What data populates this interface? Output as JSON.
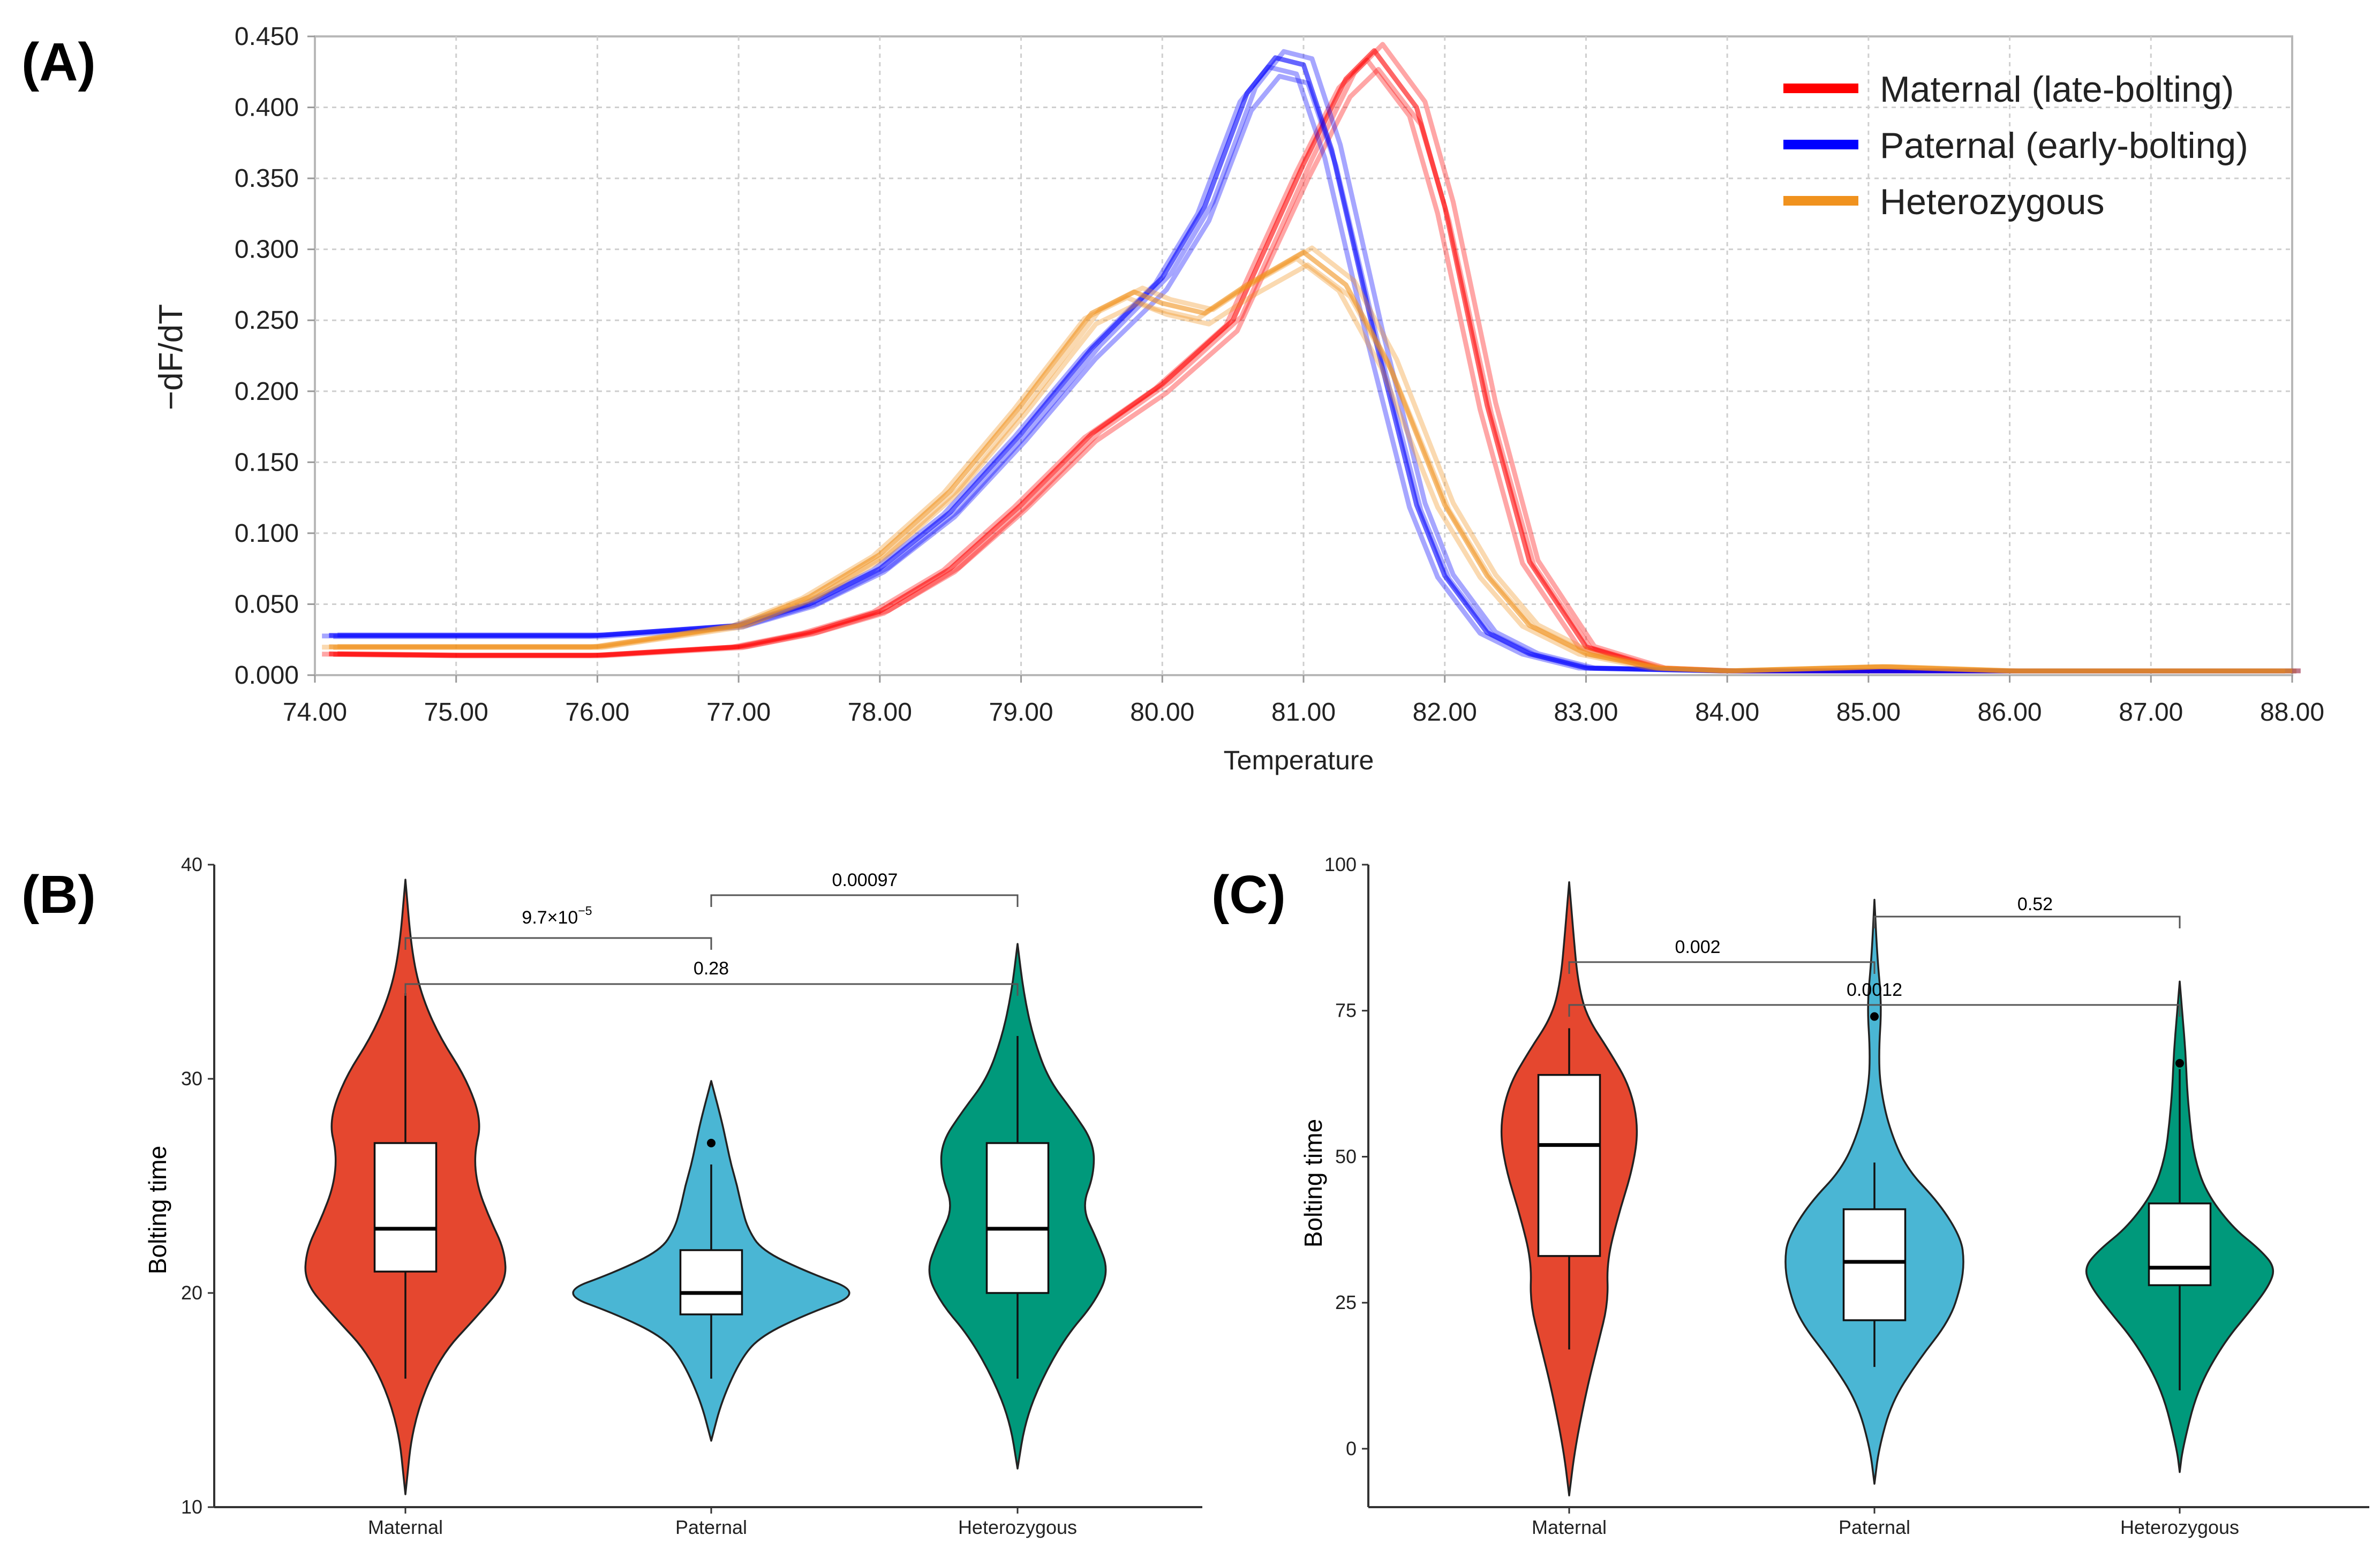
{
  "chart_data": [
    {
      "panel_label": "(A)",
      "type": "line",
      "xlabel": "Temperature",
      "ylabel": "−dF/dT",
      "xlim": [
        74.0,
        88.0
      ],
      "ylim": [
        0.0,
        0.45
      ],
      "grid": true,
      "legend_position": "top-right",
      "x_ticks": [
        "74.00",
        "75.00",
        "76.00",
        "77.00",
        "78.00",
        "79.00",
        "80.00",
        "81.00",
        "82.00",
        "83.00",
        "84.00",
        "85.00",
        "86.00",
        "87.00",
        "88.00"
      ],
      "y_ticks": [
        "0.000",
        "0.050",
        "0.100",
        "0.150",
        "0.200",
        "0.250",
        "0.300",
        "0.350",
        "0.400",
        "0.450"
      ],
      "series": [
        {
          "name": "Maternal (late-bolting)",
          "color": "#ff0000",
          "x": [
            74.1,
            75.0,
            76.0,
            77.0,
            77.5,
            78.0,
            78.5,
            79.0,
            79.5,
            80.0,
            80.5,
            81.0,
            81.3,
            81.5,
            81.8,
            82.0,
            82.3,
            82.6,
            83.0,
            83.5,
            84.0,
            86.0,
            88.0
          ],
          "y": [
            0.015,
            0.014,
            0.014,
            0.02,
            0.03,
            0.045,
            0.075,
            0.12,
            0.17,
            0.205,
            0.25,
            0.36,
            0.42,
            0.44,
            0.4,
            0.33,
            0.19,
            0.08,
            0.02,
            0.005,
            0.003,
            0.003,
            0.003
          ]
        },
        {
          "name": "Paternal (early-bolting)",
          "color": "#0000ff",
          "x": [
            74.1,
            75.0,
            76.0,
            77.0,
            77.5,
            78.0,
            78.5,
            79.0,
            79.5,
            80.0,
            80.3,
            80.6,
            80.8,
            81.0,
            81.2,
            81.5,
            81.8,
            82.0,
            82.3,
            82.6,
            83.0,
            84.0,
            86.0,
            88.0
          ],
          "y": [
            0.028,
            0.028,
            0.028,
            0.035,
            0.05,
            0.075,
            0.115,
            0.17,
            0.23,
            0.28,
            0.33,
            0.41,
            0.435,
            0.43,
            0.37,
            0.24,
            0.12,
            0.07,
            0.03,
            0.015,
            0.005,
            0.003,
            0.003,
            0.003
          ]
        },
        {
          "name": "Heterozygous",
          "color": "#f0921e",
          "x": [
            74.1,
            75.0,
            76.0,
            77.0,
            77.5,
            78.0,
            78.5,
            79.0,
            79.5,
            79.8,
            80.0,
            80.3,
            80.6,
            81.0,
            81.3,
            81.6,
            82.0,
            82.3,
            82.6,
            83.0,
            83.5,
            84.0,
            85.1,
            86.0,
            88.0
          ],
          "y": [
            0.02,
            0.02,
            0.02,
            0.035,
            0.055,
            0.085,
            0.13,
            0.19,
            0.255,
            0.27,
            0.262,
            0.255,
            0.275,
            0.298,
            0.275,
            0.22,
            0.12,
            0.07,
            0.035,
            0.015,
            0.005,
            0.003,
            0.006,
            0.003,
            0.003
          ]
        }
      ]
    },
    {
      "panel_label": "(B)",
      "type": "violin",
      "xlabel": "",
      "ylabel": "Bolting time",
      "ylim": [
        10,
        40
      ],
      "y_ticks": [
        10,
        20,
        30,
        40
      ],
      "categories": [
        "Maternal",
        "Paternal",
        "Heterozygous"
      ],
      "colors": [
        "#e5472f",
        "#4ab6d4",
        "#00997b"
      ],
      "box": [
        {
          "whisker_low": 16,
          "q1": 21,
          "median": 23,
          "q3": 27,
          "whisker_high": 34,
          "outliers": []
        },
        {
          "whisker_low": 16,
          "q1": 19,
          "median": 20,
          "q3": 22,
          "whisker_high": 26,
          "outliers": [
            27
          ]
        },
        {
          "whisker_low": 16,
          "q1": 20,
          "median": 23,
          "q3": 27,
          "whisker_high": 32,
          "outliers": []
        }
      ],
      "violin": [
        {
          "y": [
            10.6,
            14,
            17,
            19,
            20.5,
            22,
            23.5,
            25,
            26.5,
            28,
            30,
            32,
            34,
            36,
            39.3
          ],
          "w": [
            0,
            0.05,
            0.22,
            0.48,
            0.66,
            0.65,
            0.55,
            0.47,
            0.45,
            0.5,
            0.4,
            0.22,
            0.1,
            0.04,
            0
          ]
        },
        {
          "y": [
            13.1,
            15,
            17,
            18,
            19,
            20,
            21,
            22,
            23,
            24,
            25,
            26,
            27,
            28,
            29.9
          ],
          "w": [
            0,
            0.07,
            0.2,
            0.33,
            0.62,
            1.0,
            0.62,
            0.33,
            0.24,
            0.2,
            0.17,
            0.13,
            0.1,
            0.07,
            0
          ]
        },
        {
          "y": [
            11.8,
            14,
            16,
            18,
            19.5,
            21,
            22.5,
            24,
            25.5,
            27,
            28.5,
            30,
            32,
            34,
            36.3
          ],
          "w": [
            0,
            0.05,
            0.16,
            0.32,
            0.5,
            0.6,
            0.52,
            0.42,
            0.5,
            0.5,
            0.36,
            0.2,
            0.1,
            0.04,
            0
          ]
        }
      ],
      "comparisons": [
        {
          "groups": [
            "Maternal",
            "Paternal"
          ],
          "p_base": "9.7×10",
          "p_exp": "−5"
        },
        {
          "groups": [
            "Paternal",
            "Heterozygous"
          ],
          "p_label": "0.00097"
        },
        {
          "groups": [
            "Maternal",
            "Heterozygous"
          ],
          "p_label": "0.28"
        }
      ]
    },
    {
      "panel_label": "(C)",
      "type": "violin",
      "xlabel": "",
      "ylabel": "Bolting time",
      "ylim": [
        -10,
        100
      ],
      "y_ticks": [
        0,
        25,
        50,
        75,
        100
      ],
      "categories": [
        "Maternal",
        "Paternal",
        "Heterozygous"
      ],
      "colors": [
        "#e5472f",
        "#4ab6d4",
        "#00997b"
      ],
      "box": [
        {
          "whisker_low": 17,
          "q1": 33,
          "median": 52,
          "q3": 64,
          "whisker_high": 72,
          "outliers": []
        },
        {
          "whisker_low": 14,
          "q1": 22,
          "median": 32,
          "q3": 41,
          "whisker_high": 49,
          "outliers": [
            74
          ]
        },
        {
          "whisker_low": 10,
          "q1": 28,
          "median": 31,
          "q3": 42,
          "whisker_high": 65,
          "outliers": [
            66
          ]
        }
      ],
      "violin": [
        {
          "y": [
            -8,
            0,
            10,
            18,
            25,
            32,
            40,
            48,
            55,
            62,
            68,
            74,
            80,
            88,
            97
          ],
          "w": [
            0,
            0.04,
            0.12,
            0.2,
            0.27,
            0.26,
            0.34,
            0.44,
            0.48,
            0.42,
            0.28,
            0.12,
            0.06,
            0.03,
            0
          ]
        },
        {
          "y": [
            -6,
            0,
            8,
            15,
            22,
            28,
            32,
            36,
            42,
            48,
            55,
            62,
            68,
            76,
            84,
            94
          ],
          "w": [
            0,
            0.03,
            0.12,
            0.3,
            0.52,
            0.6,
            0.62,
            0.6,
            0.45,
            0.22,
            0.1,
            0.04,
            0.03,
            0.05,
            0.02,
            0
          ]
        },
        {
          "y": [
            -4,
            0,
            10,
            18,
            24,
            28,
            31,
            34,
            38,
            44,
            50,
            56,
            62,
            68,
            74,
            80
          ],
          "w": [
            0,
            0.02,
            0.12,
            0.3,
            0.5,
            0.62,
            0.66,
            0.56,
            0.36,
            0.18,
            0.1,
            0.07,
            0.05,
            0.04,
            0.02,
            0
          ]
        }
      ],
      "comparisons": [
        {
          "groups": [
            "Maternal",
            "Paternal"
          ],
          "p_label": "0.002"
        },
        {
          "groups": [
            "Paternal",
            "Heterozygous"
          ],
          "p_label": "0.52"
        },
        {
          "groups": [
            "Maternal",
            "Heterozygous"
          ],
          "p_label": "0.0012"
        }
      ]
    }
  ]
}
